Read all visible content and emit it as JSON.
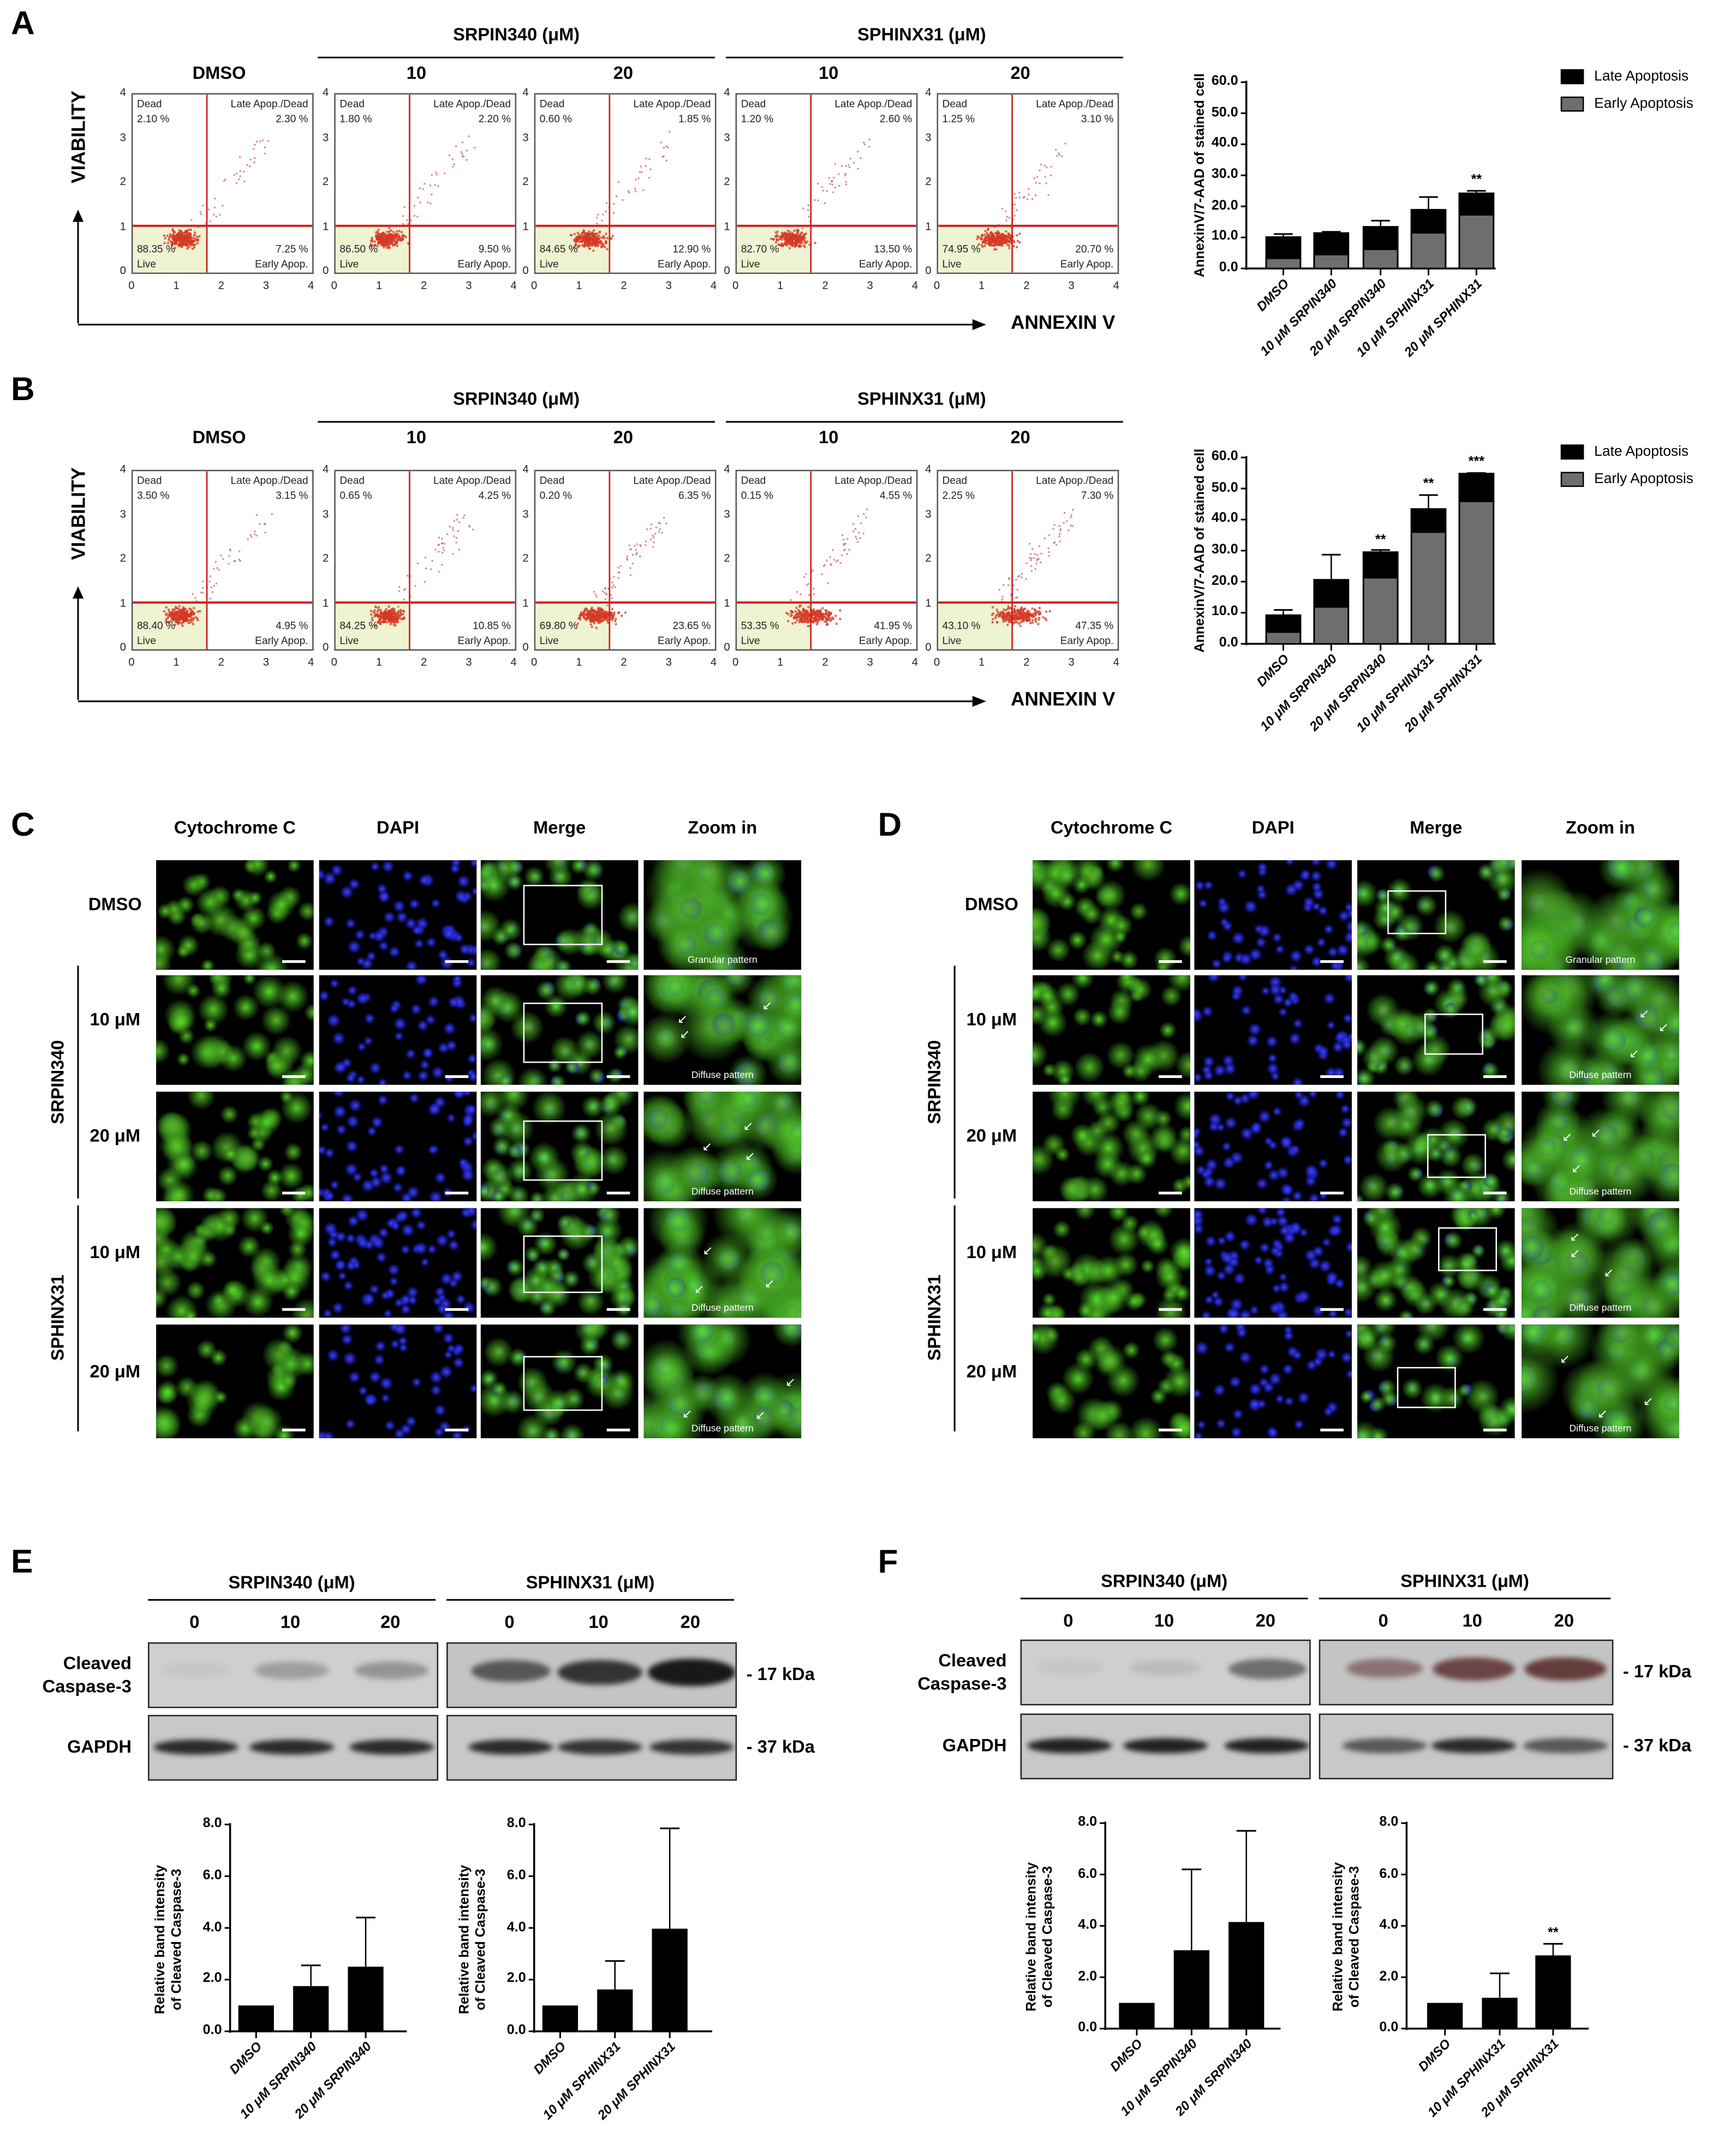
{
  "panel_labels": {
    "A": "A",
    "B": "B",
    "C": "C",
    "D": "D",
    "E": "E",
    "F": "F"
  },
  "flow": {
    "group_srpin": "SRPIN340 (μM)",
    "group_sphinx": "SPHINX31 (μM)",
    "doses": [
      "DMSO",
      "10",
      "20",
      "10",
      "20"
    ],
    "y_axis": "VIABILITY",
    "x_axis": "ANNEXIN V",
    "ticks": [
      "0",
      "1",
      "2",
      "3",
      "4"
    ],
    "quadrants": {
      "dead": "Dead",
      "late": "Late Apop./Dead",
      "live": "Live",
      "early": "Early Apop."
    },
    "A": [
      {
        "dead": "2.10 %",
        "late": "2.30 %",
        "live": "88.35 %",
        "early": "7.25 %"
      },
      {
        "dead": "1.80 %",
        "late": "2.20 %",
        "live": "86.50 %",
        "early": "9.50 %"
      },
      {
        "dead": "0.60 %",
        "late": "1.85 %",
        "live": "84.65 %",
        "early": "12.90 %"
      },
      {
        "dead": "1.20 %",
        "late": "2.60 %",
        "live": "82.70 %",
        "early": "13.50 %"
      },
      {
        "dead": "1.25 %",
        "late": "3.10 %",
        "live": "74.95 %",
        "early": "20.70 %"
      }
    ],
    "B": [
      {
        "dead": "3.50 %",
        "late": "3.15 %",
        "live": "88.40 %",
        "early": "4.95 %"
      },
      {
        "dead": "0.65 %",
        "late": "4.25 %",
        "live": "84.25 %",
        "early": "10.85 %"
      },
      {
        "dead": "0.20 %",
        "late": "6.35 %",
        "live": "69.80 %",
        "early": "23.65 %"
      },
      {
        "dead": "0.15 %",
        "late": "4.55 %",
        "live": "53.35 %",
        "early": "41.95 %"
      },
      {
        "dead": "2.25 %",
        "late": "7.30 %",
        "live": "43.10 %",
        "early": "47.35 %"
      }
    ]
  },
  "chart_data": [
    {
      "type": "bar",
      "stacked": true,
      "panel": "A",
      "ylabel": "AnnexinV/7-AAD of stained cell",
      "ylim": [
        0,
        60
      ],
      "yticks": [
        "0.0",
        "10.0",
        "20.0",
        "30.0",
        "40.0",
        "50.0",
        "60.0"
      ],
      "categories": [
        "DMSO",
        "10 μM SRPIN340",
        "20 μM SRPIN340",
        "10 μM SPHINX31",
        "20 μM SPHINX31"
      ],
      "series": [
        {
          "name": "Early Apoptosis",
          "color": "#6e6e6e",
          "values": [
            3.3,
            4.5,
            6.2,
            11.5,
            17.3
          ]
        },
        {
          "name": "Late Apoptosis",
          "color": "#000000",
          "values": [
            6.8,
            6.9,
            7.2,
            7.4,
            6.9
          ]
        }
      ],
      "error": [
        1.0,
        0.4,
        2.0,
        4.1,
        0.8
      ],
      "significance": [
        "",
        "",
        "",
        "",
        "**"
      ],
      "legend": [
        "Late Apoptosis",
        "Early Apoptosis"
      ],
      "legend_position": "top-right"
    },
    {
      "type": "bar",
      "stacked": true,
      "panel": "B",
      "ylabel": "AnnexinV/7-AAD of stained cell",
      "ylim": [
        0,
        60
      ],
      "yticks": [
        "0.0",
        "10.0",
        "20.0",
        "30.0",
        "40.0",
        "50.0",
        "60.0"
      ],
      "categories": [
        "DMSO",
        "10 μM SRPIN340",
        "20 μM SRPIN340",
        "10 μM SPHINX31",
        "20 μM SPHINX31"
      ],
      "series": [
        {
          "name": "Early Apoptosis",
          "color": "#6e6e6e",
          "values": [
            3.8,
            11.9,
            21.3,
            36.0,
            45.9
          ]
        },
        {
          "name": "Late Apoptosis",
          "color": "#000000",
          "values": [
            5.4,
            8.7,
            8.2,
            7.4,
            8.9
          ]
        }
      ],
      "error": [
        1.7,
        8.1,
        0.7,
        4.5,
        0.2
      ],
      "significance": [
        "",
        "",
        "**",
        "**",
        "***"
      ],
      "legend": [
        "Late Apoptosis",
        "Early Apoptosis"
      ],
      "legend_position": "top-right"
    },
    {
      "type": "bar",
      "panel": "E",
      "ylabel": [
        "Relative band intensity",
        "of Cleaved Caspase-3"
      ],
      "ylim": [
        0,
        8
      ],
      "yticks": [
        "0.0",
        "2.0",
        "4.0",
        "6.0",
        "8.0"
      ],
      "categories": [
        "DMSO",
        "10 μM SRPIN340",
        "20 μM SRPIN340"
      ],
      "values": [
        1.0,
        1.75,
        2.5
      ],
      "error": [
        0,
        0.8,
        1.9
      ],
      "significance": [
        "",
        "",
        ""
      ]
    },
    {
      "type": "bar",
      "panel": "E",
      "ylabel": [
        "Relative band intensity",
        "of Cleaved Caspase-3"
      ],
      "ylim": [
        0,
        8
      ],
      "yticks": [
        "0.0",
        "2.0",
        "4.0",
        "6.0",
        "8.0"
      ],
      "categories": [
        "DMSO",
        "10 μM SPHINX31",
        "20 μM SPHINX31"
      ],
      "values": [
        1.0,
        1.62,
        3.97
      ],
      "error": [
        0,
        1.1,
        3.88
      ],
      "significance": [
        "",
        "",
        ""
      ]
    },
    {
      "type": "bar",
      "panel": "F",
      "ylabel": [
        "Relative band intensity",
        "of Cleaved Caspase-3"
      ],
      "ylim": [
        0,
        8
      ],
      "yticks": [
        "0.0",
        "2.0",
        "4.0",
        "6.0",
        "8.0"
      ],
      "categories": [
        "DMSO",
        "10 μM SRPIN340",
        "20 μM SRPIN340"
      ],
      "values": [
        1.0,
        3.05,
        4.15
      ],
      "error": [
        0,
        3.15,
        3.55
      ],
      "significance": [
        "",
        "",
        ""
      ]
    },
    {
      "type": "bar",
      "panel": "F",
      "ylabel": [
        "Relative band intensity",
        "of Cleaved Caspase-3"
      ],
      "ylim": [
        0,
        8
      ],
      "yticks": [
        "0.0",
        "2.0",
        "4.0",
        "6.0",
        "8.0"
      ],
      "categories": [
        "DMSO",
        "10 μM SPHINX31",
        "20 μM SPHINX31"
      ],
      "values": [
        1.0,
        1.2,
        2.85
      ],
      "error": [
        0,
        0.95,
        0.45
      ],
      "significance": [
        "",
        "",
        "**"
      ]
    }
  ],
  "if": {
    "columns": [
      "Cytochrome C",
      "DAPI",
      "Merge",
      "Zoom in"
    ],
    "rows": [
      "DMSO",
      "10 μM",
      "20 μM",
      "10 μM",
      "20 μM"
    ],
    "groups": [
      "SRPIN340",
      "SPHINX31"
    ],
    "patterns": [
      "Granular pattern",
      "Diffuse pattern",
      "Diffuse pattern",
      "Diffuse pattern",
      "Diffuse pattern"
    ]
  },
  "wb": {
    "group_srpin": "SRPIN340 (μM)",
    "group_sphinx": "SPHINX31 (μM)",
    "lanes": [
      "0",
      "10",
      "20"
    ],
    "cleaved_label": [
      "Cleaved",
      "Caspase-3"
    ],
    "gapdh_label": "GAPDH",
    "kda_17": "- 17 kDa",
    "kda_37": "- 37 kDa",
    "E": {
      "casp_srpin": [
        0.05,
        0.25,
        0.3
      ],
      "casp_sphinx": [
        0.6,
        0.8,
        0.95
      ],
      "gapdh_srpin": [
        0.85,
        0.85,
        0.85
      ],
      "gapdh_sphinx": [
        0.85,
        0.8,
        0.8
      ]
    },
    "F": {
      "casp_srpin": [
        0.05,
        0.1,
        0.5
      ],
      "casp_sphinx": [
        0.45,
        0.7,
        0.75
      ],
      "gapdh_srpin": [
        0.9,
        0.9,
        0.9
      ],
      "gapdh_sphinx": [
        0.6,
        0.85,
        0.6
      ]
    }
  }
}
